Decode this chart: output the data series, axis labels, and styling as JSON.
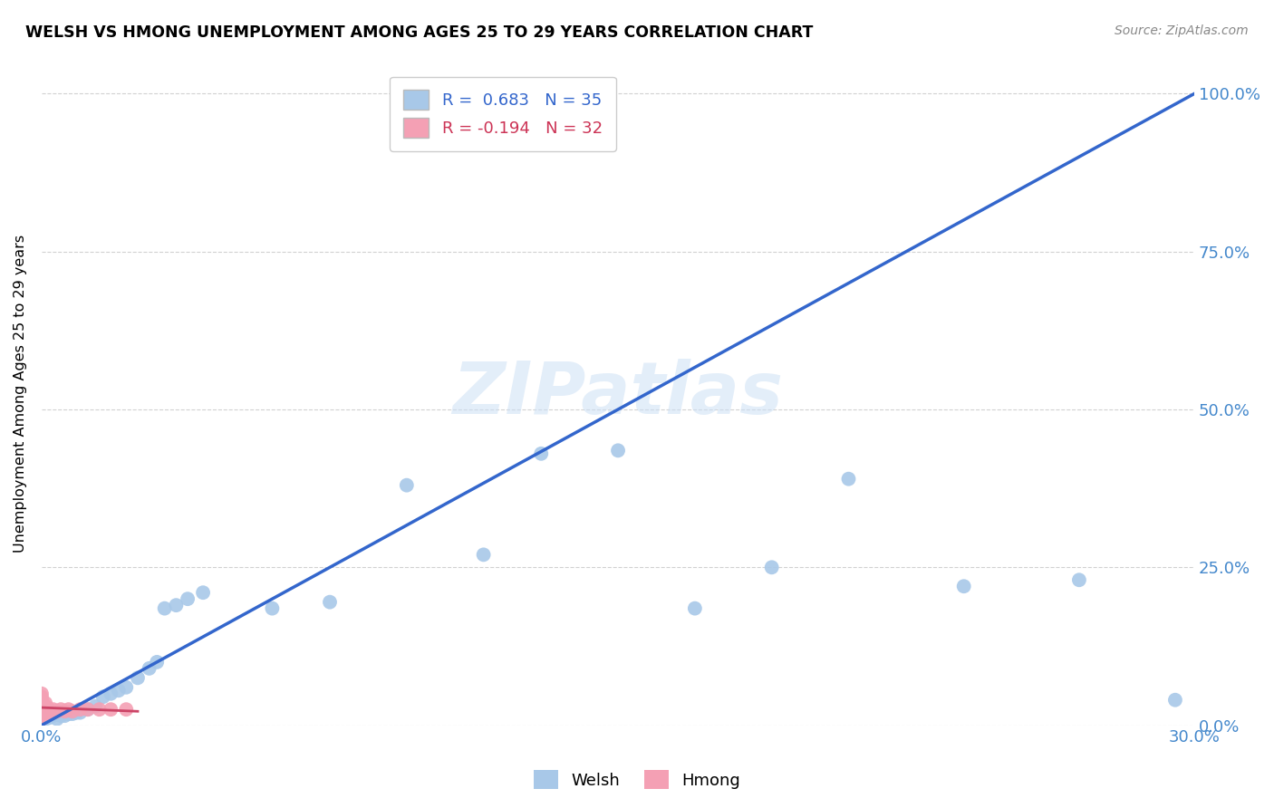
{
  "title": "WELSH VS HMONG UNEMPLOYMENT AMONG AGES 25 TO 29 YEARS CORRELATION CHART",
  "source": "Source: ZipAtlas.com",
  "ylabel_label": "Unemployment Among Ages 25 to 29 years",
  "xmin": 0.0,
  "xmax": 0.3,
  "ymin": 0.0,
  "ymax": 1.05,
  "welsh_color": "#a8c8e8",
  "hmong_color": "#f4a0b4",
  "trendline_welsh_color": "#3366cc",
  "trendline_hmong_color": "#cc4466",
  "watermark": "ZIPatlas",
  "legend_welsh_r": "R =  0.683",
  "legend_welsh_n": "N = 35",
  "legend_hmong_r": "R = -0.194",
  "legend_hmong_n": "N = 32",
  "welsh_x": [
    0.001,
    0.002,
    0.003,
    0.004,
    0.005,
    0.006,
    0.007,
    0.008,
    0.009,
    0.01,
    0.012,
    0.014,
    0.016,
    0.018,
    0.02,
    0.022,
    0.025,
    0.028,
    0.03,
    0.032,
    0.035,
    0.038,
    0.042,
    0.06,
    0.075,
    0.095,
    0.115,
    0.13,
    0.15,
    0.17,
    0.19,
    0.21,
    0.24,
    0.27,
    0.295
  ],
  "welsh_y": [
    0.01,
    0.012,
    0.015,
    0.01,
    0.015,
    0.015,
    0.018,
    0.018,
    0.02,
    0.02,
    0.025,
    0.03,
    0.045,
    0.05,
    0.055,
    0.06,
    0.075,
    0.09,
    0.1,
    0.185,
    0.19,
    0.2,
    0.21,
    0.185,
    0.195,
    0.38,
    0.27,
    0.43,
    0.435,
    0.185,
    0.25,
    0.39,
    0.22,
    0.23,
    0.04
  ],
  "hmong_x": [
    0.0,
    0.0,
    0.0,
    0.0,
    0.0,
    0.0,
    0.0,
    0.0,
    0.0,
    0.0,
    0.0,
    0.0,
    0.001,
    0.001,
    0.001,
    0.001,
    0.001,
    0.002,
    0.002,
    0.002,
    0.003,
    0.003,
    0.004,
    0.005,
    0.006,
    0.007,
    0.008,
    0.01,
    0.012,
    0.015,
    0.018,
    0.022
  ],
  "hmong_y": [
    0.01,
    0.012,
    0.015,
    0.018,
    0.02,
    0.022,
    0.025,
    0.03,
    0.035,
    0.04,
    0.045,
    0.05,
    0.018,
    0.022,
    0.025,
    0.03,
    0.035,
    0.018,
    0.022,
    0.025,
    0.02,
    0.025,
    0.022,
    0.025,
    0.022,
    0.025,
    0.022,
    0.025,
    0.025,
    0.025,
    0.025,
    0.025
  ],
  "welsh_trendline_x": [
    0.0,
    0.3
  ],
  "welsh_trendline_y": [
    0.0,
    1.0
  ],
  "hmong_trendline_x": [
    0.0,
    0.025
  ],
  "hmong_trendline_y": [
    0.028,
    0.022
  ],
  "background_color": "#ffffff",
  "grid_color": "#cccccc",
  "tick_color_x": "#4488cc",
  "tick_color_y": "#4488cc",
  "legend_text_welsh_color": "#3366cc",
  "legend_text_hmong_color": "#cc3355"
}
